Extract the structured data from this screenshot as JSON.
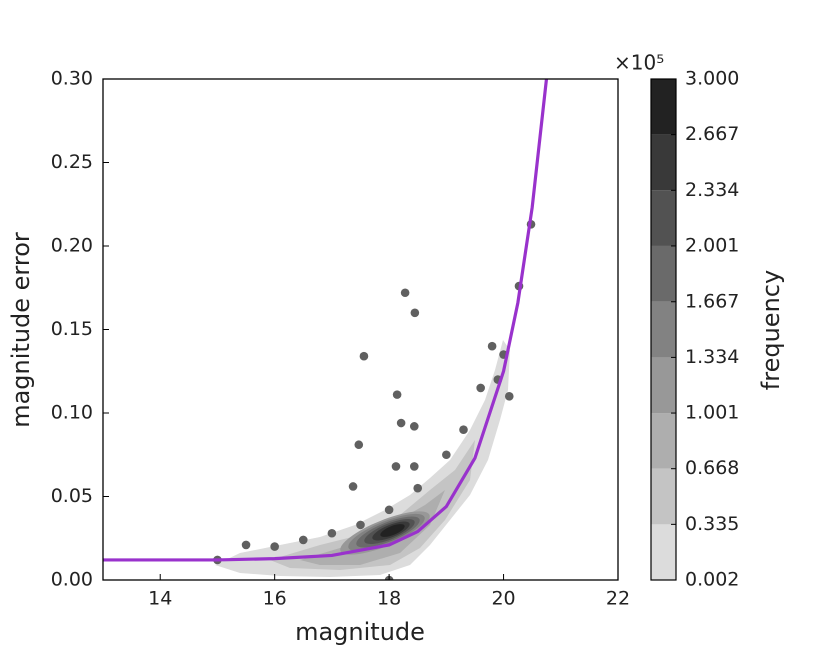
{
  "chart_data": {
    "type": "scatter",
    "xlabel": "magnitude",
    "ylabel": "magnitude error",
    "xlim": [
      13,
      22
    ],
    "ylim": [
      0,
      0.3
    ],
    "xticks": [
      14,
      16,
      18,
      20,
      22
    ],
    "yticks": [
      {
        "value": 0,
        "label": "0.00"
      },
      0.05,
      {
        "value": 0.1,
        "label": "0.10"
      },
      0.15,
      {
        "value": 0.2,
        "label": "0.20"
      },
      0.25,
      {
        "value": 0.3,
        "label": "0.30"
      }
    ],
    "points": {
      "color": "#606060",
      "x": [
        18.28,
        18.45,
        17.56,
        18.14,
        18.21,
        18.44,
        17.47,
        17.37,
        18.12,
        18.44,
        20.48,
        20.27,
        18.0,
        15.0,
        15.5,
        16.0,
        16.5,
        17.0,
        17.5,
        18.0,
        18.5,
        19.0,
        19.3,
        19.6,
        19.8,
        20.0,
        19.9,
        20.1
      ],
      "values": [
        0.172,
        0.16,
        0.134,
        0.111,
        0.094,
        0.092,
        0.081,
        0.056,
        0.068,
        0.068,
        0.213,
        0.176,
        0.0,
        0.012,
        0.021,
        0.02,
        0.024,
        0.028,
        0.033,
        0.042,
        0.055,
        0.075,
        0.09,
        0.115,
        0.14,
        0.135,
        0.12,
        0.11
      ]
    },
    "fit": {
      "type": "line",
      "color": "#9932cc",
      "x": [
        13,
        14,
        15,
        16,
        17,
        18,
        18.5,
        19,
        19.5,
        20,
        20.25,
        20.5,
        20.75
      ],
      "values": [
        0.012,
        0.012,
        0.012,
        0.0128,
        0.0147,
        0.021,
        0.029,
        0.044,
        0.073,
        0.125,
        0.166,
        0.223,
        0.3
      ]
    },
    "colorbar": {
      "label": "frequency",
      "multiplier": "×10⁵",
      "lim": [
        0.002,
        3.0
      ],
      "ticks": [
        0.002,
        0.335,
        0.668,
        1.001,
        1.334,
        1.667,
        2.001,
        2.334,
        2.667,
        {
          "value": 3.0,
          "label": "3.000"
        }
      ],
      "colors": [
        "#dcdcdc",
        "#c4c4c4",
        "#aeaeae",
        "#989898",
        "#828282",
        "#6a6a6a",
        "#525252",
        "#393939",
        "#222222"
      ]
    }
  }
}
